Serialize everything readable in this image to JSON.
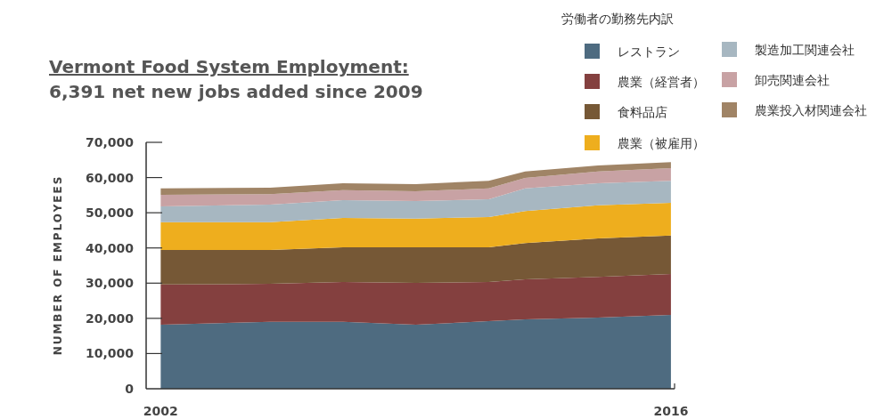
{
  "chart_data": {
    "type": "area",
    "stacked": true,
    "title": "Vermont Food System Employment:",
    "subtitle": "6,391 net new jobs added since 2009",
    "ylabel": "NUMBER OF EMPLOYEES",
    "legend_title": "労働者の勤務先内訳",
    "legend": "top right",
    "x": [
      2002,
      2005,
      2007,
      2009,
      2011,
      2012,
      2014,
      2016
    ],
    "xlim": [
      2001.6,
      2016.1
    ],
    "xticks": [
      2002,
      2016
    ],
    "ylim": [
      0,
      70000
    ],
    "yticks": [
      0,
      {
        "value": 10000,
        "label": "10,000"
      },
      {
        "value": 20000,
        "label": "20,000"
      },
      {
        "value": 30000,
        "label": "30,000"
      },
      {
        "value": 40000,
        "label": "40,000"
      },
      {
        "value": 50000,
        "label": "50,000"
      },
      {
        "value": 60000,
        "label": "60,000"
      },
      {
        "value": 70000,
        "label": "70,000"
      }
    ],
    "series": [
      {
        "name": "レストラン",
        "color": "#4e6b80",
        "values": [
          18200,
          19000,
          19000,
          18200,
          19200,
          19700,
          20200,
          21000
        ]
      },
      {
        "name": "農業（経営者）",
        "color": "#84403f",
        "values": [
          11400,
          10800,
          11300,
          11900,
          11100,
          11400,
          11600,
          11600
        ]
      },
      {
        "name": "食料品店",
        "color": "#765836",
        "values": [
          9800,
          9600,
          9900,
          10100,
          9900,
          10300,
          10900,
          10900
        ]
      },
      {
        "name": "農業（被雇用）",
        "color": "#eeae1e",
        "values": [
          7900,
          7900,
          8300,
          8100,
          8600,
          9100,
          9400,
          9300
        ]
      },
      {
        "name": "製造加工関連会社",
        "color": "#a7b7c1",
        "values": [
          4500,
          5000,
          5100,
          5000,
          5000,
          6400,
          6300,
          6300
        ]
      },
      {
        "name": "卸売関連会社",
        "color": "#c8a2a4",
        "values": [
          3300,
          3000,
          2800,
          2800,
          3100,
          3000,
          3300,
          3600
        ]
      },
      {
        "name": "農業投入材関連会社",
        "color": "#a08466",
        "values": [
          1800,
          1800,
          2000,
          2000,
          2200,
          1800,
          1700,
          1700
        ]
      }
    ]
  }
}
